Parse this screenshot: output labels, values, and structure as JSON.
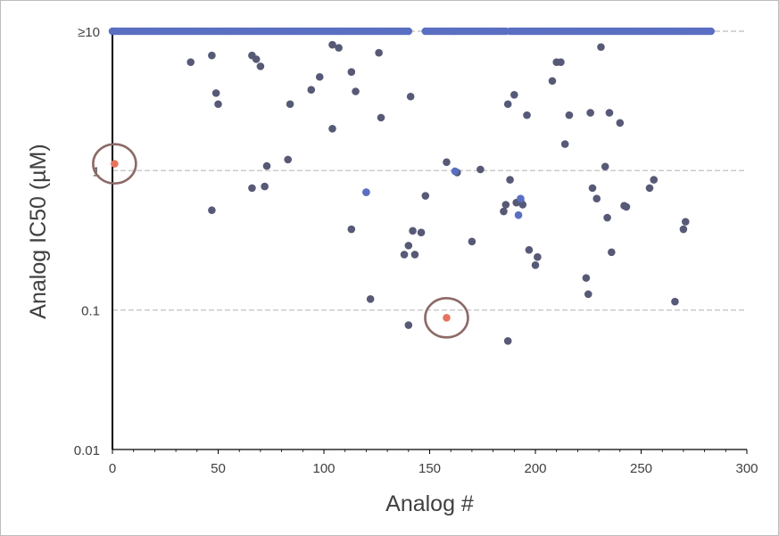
{
  "chart_data": {
    "type": "scatter",
    "title": "",
    "xlabel": "Analog #",
    "ylabel": "Analog IC50 (µM)",
    "xlim": [
      0,
      300
    ],
    "ylim": [
      0.01,
      10
    ],
    "y_scale": "log",
    "grid": "horizontal dashed",
    "x_ticks": [
      {
        "value": 0,
        "label": "0"
      },
      {
        "value": 50,
        "label": "50"
      },
      {
        "value": 100,
        "label": "100"
      },
      {
        "value": 150,
        "label": "150"
      },
      {
        "value": 200,
        "label": "200"
      },
      {
        "value": 250,
        "label": "250"
      },
      {
        "value": 300,
        "label": "300"
      }
    ],
    "y_ticks": [
      {
        "value": 0.01,
        "label": "0.01"
      },
      {
        "value": 0.1,
        "label": "0.1"
      },
      {
        "value": 1,
        "label": "1"
      },
      {
        "value": 10,
        "label": "≥10"
      }
    ],
    "colors": {
      "analog_point": "#575a76",
      "ceiling_point": "#5a6fc2",
      "highlight_point": "#e6735f",
      "circle": "#8c6a66",
      "axis": "#000000",
      "grid": "#c8c8c8",
      "text": "#404040"
    },
    "series": [
      {
        "values": [
          [
            37,
            6.0
          ],
          [
            47,
            6.7
          ],
          [
            49,
            3.6
          ],
          [
            50,
            3.0
          ],
          [
            47,
            0.52
          ],
          [
            66,
            6.7
          ],
          [
            68,
            6.3
          ],
          [
            70,
            5.6
          ],
          [
            73,
            1.08
          ],
          [
            66,
            0.75
          ],
          [
            72,
            0.77
          ],
          [
            84,
            3.0
          ],
          [
            83,
            1.2
          ],
          [
            94,
            3.8
          ],
          [
            98,
            4.7
          ],
          [
            104,
            8.0
          ],
          [
            107,
            7.6
          ],
          [
            104,
            2.0
          ],
          [
            113,
            5.1
          ],
          [
            115,
            3.7
          ],
          [
            113,
            0.38
          ],
          [
            120,
            0.7
          ],
          [
            122,
            0.12
          ],
          [
            126,
            7.0
          ],
          [
            127,
            2.4
          ],
          [
            141,
            3.4
          ],
          [
            138,
            0.25
          ],
          [
            140,
            0.29
          ],
          [
            142,
            0.37
          ],
          [
            143,
            0.25
          ],
          [
            146,
            0.36
          ],
          [
            140,
            0.078
          ],
          [
            148,
            0.66
          ],
          [
            158,
            1.15
          ],
          [
            163,
            0.97
          ],
          [
            170,
            0.31
          ],
          [
            174,
            1.02
          ],
          [
            185,
            0.51
          ],
          [
            186,
            0.57
          ],
          [
            187,
            3.0
          ],
          [
            188,
            0.86
          ],
          [
            190,
            3.5
          ],
          [
            191,
            0.59
          ],
          [
            193,
            0.61
          ],
          [
            194,
            0.57
          ],
          [
            187,
            0.06
          ],
          [
            196,
            2.5
          ],
          [
            197,
            0.27
          ],
          [
            200,
            0.21
          ],
          [
            201,
            0.24
          ],
          [
            208,
            4.4
          ],
          [
            210,
            6.0
          ],
          [
            212,
            6.0
          ],
          [
            214,
            1.55
          ],
          [
            216,
            2.5
          ],
          [
            224,
            0.17
          ],
          [
            225,
            0.13
          ],
          [
            226,
            2.6
          ],
          [
            227,
            0.75
          ],
          [
            229,
            0.63
          ],
          [
            231,
            7.7
          ],
          [
            233,
            1.07
          ],
          [
            234,
            0.46
          ],
          [
            235,
            2.6
          ],
          [
            236,
            0.26
          ],
          [
            240,
            2.2
          ],
          [
            242,
            0.56
          ],
          [
            243,
            0.55
          ],
          [
            254,
            0.75
          ],
          [
            256,
            0.86
          ],
          [
            266,
            0.115
          ],
          [
            270,
            0.38
          ],
          [
            271,
            0.43
          ]
        ]
      },
      {
        "values": [
          [
            192,
            0.48
          ],
          [
            193,
            0.63
          ],
          [
            162,
            0.99
          ],
          [
            120,
            0.7
          ]
        ],
        "tone": "ceiling_point"
      },
      {
        "values": [
          [
            1,
            1.12
          ],
          [
            158,
            0.088
          ]
        ],
        "tone": "highlight_point",
        "circled": true
      }
    ],
    "ceiling_row": {
      "y": 10,
      "x_ranges": [
        [
          0,
          140
        ],
        [
          148,
          186
        ],
        [
          188,
          283
        ]
      ]
    }
  }
}
